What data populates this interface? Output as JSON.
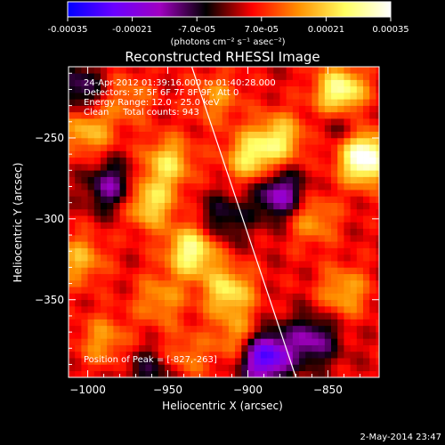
{
  "colorbar": {
    "tick_labels": [
      "-0.00035",
      "-0.00021",
      "-7.0e-05",
      "7.0e-05",
      "0.00021",
      "0.00035"
    ],
    "ticks": [
      -0.00035,
      -0.00021,
      -7e-05,
      7e-05,
      0.00021,
      0.00035
    ],
    "unit_label": "(photons cm⁻² s⁻¹ asec⁻²)",
    "range": [
      -0.00035,
      0.00035
    ],
    "palette": [
      "#0000ff",
      "#6a00ff",
      "#a000c0",
      "#000000",
      "#ff0000",
      "#ff9000",
      "#ffff60",
      "#ffffff"
    ]
  },
  "chart_data": {
    "type": "heatmap",
    "title": "Reconstructed RHESSI Image",
    "xlabel": "Heliocentric X (arcsec)",
    "ylabel": "Heliocentric Y (arcsec)",
    "xlim": [
      -1012,
      -818
    ],
    "ylim": [
      -398,
      -206
    ],
    "x_ticks": [
      -1000,
      -950,
      -900,
      -850
    ],
    "x_tick_labels": [
      "−1000",
      "−950",
      "−900",
      "−850"
    ],
    "y_ticks": [
      -250,
      -300,
      -350
    ],
    "y_tick_labels": [
      "−250",
      "−300",
      "−350"
    ],
    "grid": false,
    "info_lines": [
      "24-Apr-2012 01:39:16.000 to 01:40:28.000",
      "Detectors: 3F 5F 6F 7F 8F 9F, Att 0",
      "Energy Range: 12.0 - 25.0 keV",
      "Clean     Total counts: 943"
    ],
    "peak_label": "Position of Peak = [-827,-263]",
    "peak": [
      -827,
      -263
    ],
    "limb_line": [
      [
        -935,
        -206
      ],
      [
        -870,
        -398
      ]
    ],
    "hot_spots": [
      {
        "x": -827,
        "y": -262,
        "value": 0.00035
      },
      {
        "x": -842,
        "y": -222,
        "value": 0.00028
      },
      {
        "x": -935,
        "y": -320,
        "value": 0.00025
      },
      {
        "x": -962,
        "y": -290,
        "value": 0.0002
      },
      {
        "x": -950,
        "y": -265,
        "value": 0.00018
      },
      {
        "x": -898,
        "y": -262,
        "value": 0.0002
      },
      {
        "x": -880,
        "y": -250,
        "value": 0.00018
      },
      {
        "x": -912,
        "y": -345,
        "value": 0.0002
      },
      {
        "x": -905,
        "y": -375,
        "value": 0.00015
      },
      {
        "x": -1000,
        "y": -245,
        "value": 0.00016
      },
      {
        "x": -1005,
        "y": -325,
        "value": 0.00014
      },
      {
        "x": -990,
        "y": -375,
        "value": 0.00012
      },
      {
        "x": -860,
        "y": -300,
        "value": 0.00013
      },
      {
        "x": -840,
        "y": -345,
        "value": 0.00014
      },
      {
        "x": -955,
        "y": -350,
        "value": 0.00012
      },
      {
        "x": -975,
        "y": -225,
        "value": 0.0001
      },
      {
        "x": -920,
        "y": -225,
        "value": 0.00011
      },
      {
        "x": -940,
        "y": -385,
        "value": 0.0001
      }
    ],
    "cold_spots": [
      {
        "x": -890,
        "y": -385,
        "value": -0.00035
      },
      {
        "x": -880,
        "y": -285,
        "value": -0.00022
      },
      {
        "x": -985,
        "y": -280,
        "value": -0.00018
      },
      {
        "x": -1005,
        "y": -220,
        "value": -0.00015
      },
      {
        "x": -860,
        "y": -375,
        "value": -0.00018
      },
      {
        "x": -960,
        "y": -395,
        "value": -0.00012
      },
      {
        "x": -915,
        "y": -300,
        "value": -0.00012
      },
      {
        "x": -840,
        "y": -240,
        "value": -0.0001
      }
    ]
  },
  "footer": {
    "timestamp": "2-May-2014 23:47"
  }
}
